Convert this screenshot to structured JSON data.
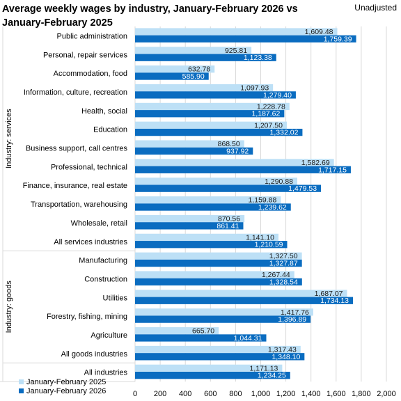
{
  "header": {
    "title": "Average weekly wages by industry, January-February 2026 vs January-February 2025",
    "note": "Unadjusted"
  },
  "colors": {
    "series_2025": "#bde0f6",
    "series_2026": "#0a6cc0",
    "value_text_2025": "#1a1a1a",
    "value_text_2026": "#ffffff",
    "grid": "#d9d9d9"
  },
  "chart_data": {
    "type": "bar",
    "orientation": "horizontal",
    "title": "Average weekly wages by industry, January-February 2026 vs January-February 2025",
    "categories": [
      "Public administration",
      "Personal, repair services",
      "Accommodation, food",
      "Information, culture, recreation",
      "Health, social",
      "Education",
      "Business support, call centres",
      "Professional, technical",
      "Finance, insurance, real estate",
      "Transportation, warehousing",
      "Wholesale, retail",
      "All services industries",
      "Manufacturing",
      "Construction",
      "Utilities",
      "Forestry, fishing, mining",
      "Agriculture",
      "All goods industries",
      "All industries"
    ],
    "groups": [
      {
        "label": "Industry: services",
        "categories": [
          "Public administration",
          "Personal, repair services",
          "Accommodation, food",
          "Information, culture, recreation",
          "Health, social",
          "Education",
          "Business support, call centres",
          "Professional, technical",
          "Finance, insurance, real estate",
          "Transportation, warehousing",
          "Wholesale, retail",
          "All services industries"
        ]
      },
      {
        "label": "Industry: goods",
        "categories": [
          "Manufacturing",
          "Construction",
          "Utilities",
          "Forestry, fishing, mining",
          "Agriculture",
          "All goods industries"
        ]
      }
    ],
    "series": [
      {
        "name": "January-February 2025",
        "values": [
          1609.48,
          925.81,
          632.78,
          1097.93,
          1228.78,
          1207.5,
          868.5,
          1582.69,
          1290.88,
          1159.88,
          870.56,
          1141.1,
          1327.5,
          1267.44,
          1687.07,
          1417.76,
          665.7,
          1317.43,
          1171.13
        ],
        "labels": [
          "1,609.48",
          "925.81",
          "632.78",
          "1,097.93",
          "1,228.78",
          "1,207.50",
          "868.50",
          "1,582.69",
          "1,290.88",
          "1,159.88",
          "870.56",
          "1,141.10",
          "1,327.50",
          "1,267.44",
          "1,687.07",
          "1,417.76",
          "665.70",
          "1,317.43",
          "1,171.13"
        ]
      },
      {
        "name": "January-February 2026",
        "values": [
          1759.39,
          1123.38,
          585.9,
          1279.4,
          1187.62,
          1332.02,
          937.92,
          1717.15,
          1479.53,
          1239.62,
          861.41,
          1210.59,
          1327.87,
          1328.54,
          1734.13,
          1396.89,
          1044.31,
          1348.1,
          1234.25
        ],
        "labels": [
          "1,759.39",
          "1,123.38",
          "585.90",
          "1,279.40",
          "1,187.62",
          "1,332.02",
          "937.92",
          "1,717.15",
          "1,479.53",
          "1,239.62",
          "861.41",
          "1,210.59",
          "1,327.87",
          "1,328.54",
          "1,734.13",
          "1,396.89",
          "1,044.31",
          "1,348.10",
          "1,234.25"
        ]
      }
    ],
    "xlim": [
      0,
      2000
    ],
    "xticks": [
      0,
      200,
      400,
      600,
      800,
      1000,
      1200,
      1400,
      1600,
      1800,
      2000
    ],
    "xtick_labels": [
      "0",
      "200",
      "400",
      "600",
      "800",
      "1,000",
      "1,200",
      "1,400",
      "1,600",
      "1,800",
      "2,000"
    ],
    "grid": true,
    "legend_position": "bottom-left"
  }
}
